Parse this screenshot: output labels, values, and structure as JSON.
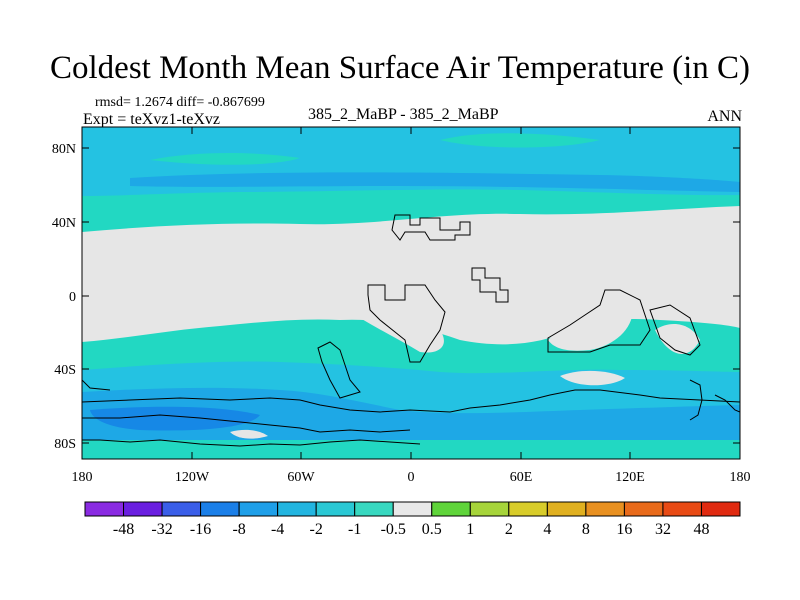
{
  "title": "Coldest Month Mean Surface Air Temperature (in C)",
  "stats": "rmsd= 1.2674 diff= -0.867699",
  "experiment": "Expt = teXvz1-teXvz",
  "case_label": "385_2_MaBP - 385_2_MaBP",
  "season": "ANN",
  "lon_ticks": [
    "180",
    "120W",
    "60W",
    "0",
    "60E",
    "120E",
    "180"
  ],
  "lat_ticks": [
    "80N",
    "40N",
    "0",
    "40S",
    "80S"
  ],
  "colorbar": {
    "labels": [
      "-48",
      "-32",
      "-16",
      "-8",
      "-4",
      "-2",
      "-1",
      "-0.5",
      "0.5",
      "1",
      "2",
      "4",
      "8",
      "16",
      "32",
      "48"
    ],
    "colors": [
      "#8a2be2",
      "#6a1fe0",
      "#3a5ee8",
      "#1b7fe8",
      "#1f9fe8",
      "#22b5e0",
      "#2ac8d4",
      "#38d8c0",
      "#e8e8e8",
      "#5fd43a",
      "#a6d43a",
      "#d8cc2a",
      "#e0b020",
      "#e89020",
      "#e86a1a",
      "#e84a14",
      "#e02a10"
    ]
  },
  "colors": {
    "neutral": "#e6e6e6",
    "teal": "#22d8c2",
    "cyan": "#24c2e2",
    "sky": "#1ea8e6",
    "blue": "#1688e6"
  }
}
